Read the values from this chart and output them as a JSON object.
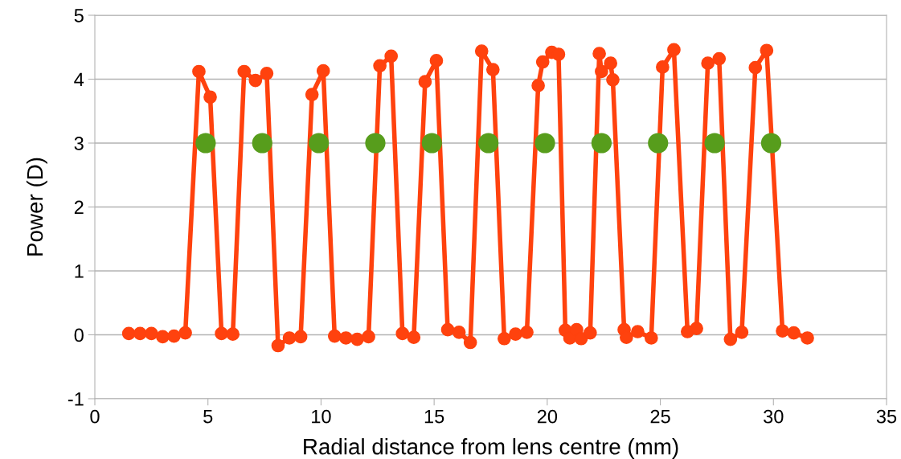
{
  "chart_data": {
    "type": "line",
    "xlabel": "Radial distance from lens centre (mm)",
    "ylabel": "Power (D)",
    "xlim": [
      0,
      35
    ],
    "xticks": [
      0,
      5,
      10,
      15,
      20,
      25,
      30,
      35
    ],
    "ylim": [
      -1,
      5
    ],
    "yticks": [
      -1,
      0,
      1,
      2,
      3,
      4,
      5
    ],
    "grid": "y",
    "marker": "circle",
    "line_style": "solid",
    "legend": false,
    "series": [
      {
        "color": "#ff420e",
        "x": [
          1.5,
          2.0,
          2.5,
          3.0,
          3.5,
          4.0,
          4.6,
          5.1,
          5.6,
          6.1,
          6.6,
          7.1,
          7.6,
          8.1,
          8.6,
          9.1,
          9.6,
          10.1,
          10.6,
          11.1,
          11.6,
          12.1,
          12.6,
          13.1,
          13.6,
          14.1,
          14.6,
          15.1,
          15.6,
          16.1,
          16.6,
          17.1,
          17.6,
          18.1,
          18.6,
          19.1,
          19.6,
          19.8,
          20.2,
          20.5,
          20.8,
          21.0,
          21.3,
          21.5,
          21.9,
          22.3,
          22.4,
          22.8,
          22.9,
          23.4,
          23.5,
          24.0,
          24.6,
          25.1,
          25.6,
          26.2,
          26.6,
          27.1,
          27.6,
          28.1,
          28.6,
          29.2,
          29.7,
          30.4,
          30.9,
          31.5
        ],
        "values": [
          0.02,
          0.02,
          0.02,
          -0.03,
          -0.02,
          0.03,
          4.12,
          3.72,
          0.02,
          0.01,
          4.12,
          3.98,
          4.09,
          -0.17,
          -0.05,
          -0.03,
          3.76,
          4.13,
          -0.02,
          -0.05,
          -0.07,
          -0.03,
          4.21,
          4.36,
          0.02,
          -0.04,
          3.96,
          4.29,
          0.08,
          0.04,
          -0.12,
          4.44,
          4.15,
          -0.06,
          0.01,
          0.04,
          3.9,
          4.27,
          4.42,
          4.39,
          0.07,
          -0.05,
          0.08,
          -0.06,
          0.03,
          4.4,
          4.12,
          4.25,
          3.99,
          0.08,
          -0.04,
          0.05,
          -0.05,
          4.19,
          4.46,
          0.05,
          0.1,
          4.25,
          4.32,
          -0.07,
          0.04,
          4.18,
          4.45,
          0.06,
          0.03,
          -0.05
        ]
      },
      {
        "type": "scatter",
        "color": "#579d1c",
        "x": [
          4.9,
          7.4,
          9.9,
          12.4,
          14.9,
          17.4,
          19.9,
          22.4,
          24.9,
          27.4,
          29.9
        ],
        "values": [
          3,
          3,
          3,
          3,
          3,
          3,
          3,
          3,
          3,
          3,
          3
        ]
      }
    ]
  }
}
